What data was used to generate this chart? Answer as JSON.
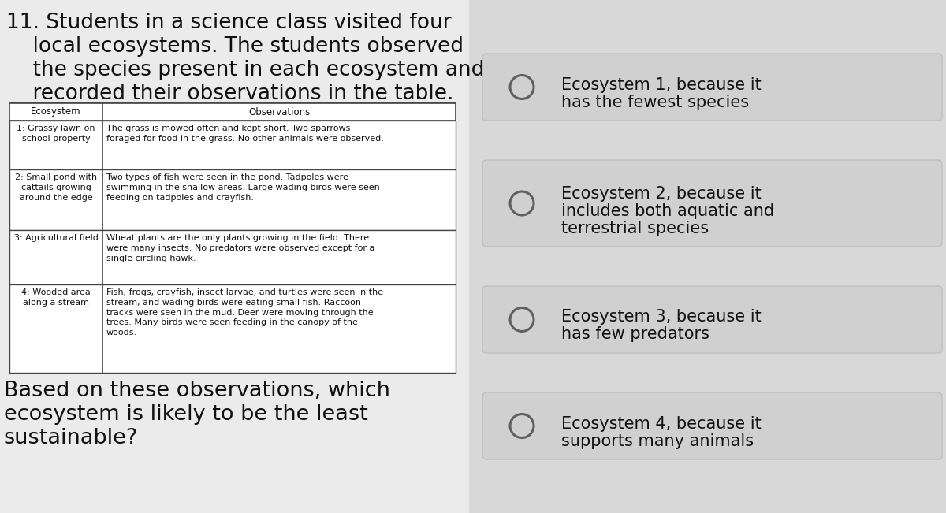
{
  "bg_color": "#d8d8d8",
  "left_bg": "#ebebeb",
  "right_bg": "#d8d8d8",
  "question_lines": [
    "11. Students in a science class visited four",
    "    local ecosystems. The students observed",
    "    the species present in each ecosystem and",
    "    recorded their observations in the table."
  ],
  "table_headers": [
    "Ecosystem",
    "Observations"
  ],
  "table_rows": [
    [
      "1: Grassy lawn on\nschool property",
      "The grass is mowed often and kept short. Two sparrows\nforaged for food in the grass. No other animals were observed."
    ],
    [
      "2: Small pond with\ncattails growing\naround the edge",
      "Two types of fish were seen in the pond. Tadpoles were\nswimming in the shallow areas. Large wading birds were seen\nfeeding on tadpoles and crayfish."
    ],
    [
      "3: Agricultural field",
      "Wheat plants are the only plants growing in the field. There\nwere many insects. No predators were observed except for a\nsingle circling hawk."
    ],
    [
      "4: Wooded area\nalong a stream",
      "Fish, frogs, crayfish, insect larvae, and turtles were seen in the\nstream, and wading birds were eating small fish. Raccoon\ntracks were seen in the mud. Deer were moving through the\ntrees. Many birds were seen feeding in the canopy of the\nwoods."
    ]
  ],
  "question_bottom_lines": [
    "Based on these observations, which",
    "ecosystem is likely to be the least",
    "sustainable?"
  ],
  "answers": [
    [
      "Ecosystem 1, because it",
      "has the fewest species"
    ],
    [
      "Ecosystem 2, because it",
      "includes both aquatic and",
      "terrestrial species"
    ],
    [
      "Ecosystem 3, because it",
      "has few predators"
    ],
    [
      "Ecosystem 4, because it",
      "supports many animals"
    ]
  ],
  "answer_box_color": "#d0d0d0",
  "answer_box_edge": "#c0c0c0",
  "circle_edge": "#606060",
  "text_color": "#111111",
  "table_edge": "#444444"
}
